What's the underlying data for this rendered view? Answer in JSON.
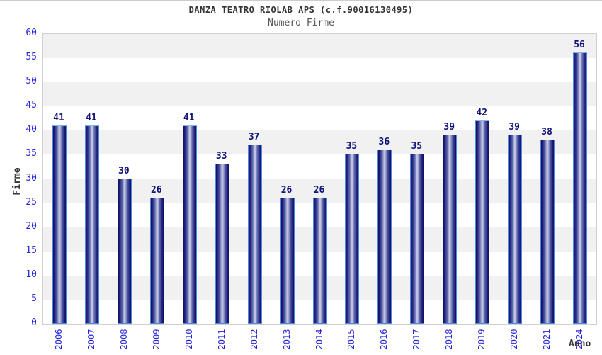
{
  "title": "DANZA TEATRO RIOLAB APS (c.f.90016130495)",
  "subtitle": "Numero Firme",
  "chart_data": {
    "type": "bar",
    "title": "DANZA TEATRO RIOLAB APS (c.f.90016130495)",
    "subtitle": "Numero Firme",
    "categories": [
      "2006",
      "2007",
      "2008",
      "2009",
      "2010",
      "2011",
      "2012",
      "2013",
      "2014",
      "2015",
      "2016",
      "2017",
      "2018",
      "2019",
      "2020",
      "2021",
      "2024"
    ],
    "values": [
      41,
      41,
      30,
      26,
      41,
      33,
      37,
      26,
      26,
      35,
      36,
      35,
      39,
      42,
      39,
      38,
      56
    ],
    "xlabel": "Anno",
    "ylabel": "Firme",
    "ylim": [
      0,
      60
    ],
    "ytick_step": 5,
    "yticks": [
      0,
      5,
      10,
      15,
      20,
      25,
      30,
      35,
      40,
      45,
      50,
      55,
      60
    ],
    "legend": "none",
    "grid": "alternating-horizontal-bands",
    "colors": {
      "band_gray": "#f1f1f1",
      "band_white": "#ffffff",
      "plot_border": "#cfcfcf",
      "bar_dark": "#10105e",
      "bar_mid": "#5a62a8",
      "bar_light": "#cdd2e8",
      "bar_border": "#4f8ae0",
      "tick_label": "#2626d9",
      "value_label": "#12127a",
      "title": "#333333",
      "subtitle": "#555555",
      "axis_title": "#333333"
    }
  }
}
